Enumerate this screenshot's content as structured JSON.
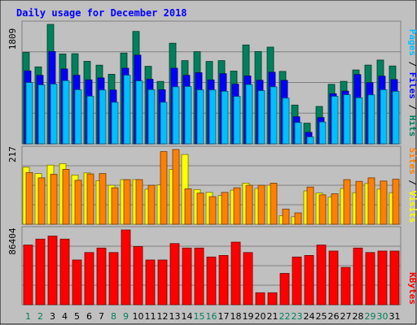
{
  "chart_data": [
    {
      "type": "bar",
      "title": "Daily usage for December 2018",
      "categories": [
        "1",
        "2",
        "3",
        "4",
        "5",
        "6",
        "7",
        "8",
        "9",
        "10",
        "11",
        "12",
        "13",
        "14",
        "15",
        "16",
        "17",
        "18",
        "19",
        "20",
        "21",
        "22",
        "23",
        "24",
        "25",
        "26",
        "27",
        "28",
        "29",
        "30",
        "31"
      ],
      "weekend_days": [
        "1",
        "2",
        "8",
        "9",
        "15",
        "16",
        "22",
        "23",
        "29",
        "30"
      ],
      "y_max_label": "1809",
      "y_legend": [
        "Pages",
        "Files",
        "Hits"
      ],
      "series": [
        {
          "name": "Hits",
          "color": "#00805c",
          "values": [
            1384,
            1165,
            1809,
            1361,
            1365,
            1249,
            1191,
            1054,
            1375,
            1702,
            1174,
            945,
            1523,
            1260,
            1396,
            1248,
            1260,
            1102,
            1498,
            1398,
            1465,
            1096,
            587,
            313,
            566,
            901,
            946,
            1119,
            1192,
            1269,
            1179
          ]
        },
        {
          "name": "Files",
          "color": "#0000ff",
          "values": [
            1104,
            1038,
            1398,
            1133,
            1039,
            969,
            998,
            815,
            1145,
            1343,
            977,
            819,
            1144,
            1038,
            1077,
            967,
            1062,
            903,
            1027,
            962,
            1084,
            961,
            410,
            173,
            397,
            758,
            799,
            1048,
            927,
            1024,
            973
          ]
        },
        {
          "name": "Pages",
          "color": "#00bfff",
          "values": [
            928,
            892,
            905,
            956,
            818,
            721,
            815,
            629,
            1039,
            952,
            820,
            629,
            863,
            867,
            816,
            816,
            795,
            718,
            897,
            805,
            863,
            691,
            323,
            104,
            330,
            719,
            743,
            697,
            741,
            818,
            794
          ]
        }
      ]
    },
    {
      "type": "bar",
      "y_max_label": "217",
      "y_legend": [
        "Sites",
        "Visits"
      ],
      "categories": [
        "1",
        "2",
        "3",
        "4",
        "5",
        "6",
        "7",
        "8",
        "9",
        "10",
        "11",
        "12",
        "13",
        "14",
        "15",
        "16",
        "17",
        "18",
        "19",
        "20",
        "21",
        "22",
        "23",
        "24",
        "25",
        "26",
        "27",
        "28",
        "29",
        "30",
        "31"
      ],
      "series": [
        {
          "name": "Visits",
          "color": "#ffff00",
          "values": [
            161,
            143,
            167,
            171,
            139,
            145,
            123,
            110,
            126,
            126,
            99,
            111,
            155,
            197,
            98,
            90,
            81,
            96,
            116,
            101,
            110,
            24,
            21,
            94,
            88,
            77,
            101,
            89,
            115,
            99,
            89
          ]
        },
        {
          "name": "Sites",
          "color": "#ff8000",
          "values": [
            146,
            131,
            141,
            155,
            124,
            142,
            143,
            103,
            126,
            126,
            110,
            205,
            211,
            100,
            88,
            78,
            90,
            103,
            110,
            110,
            116,
            43,
            32,
            105,
            83,
            86,
            126,
            121,
            131,
            122,
            127
          ]
        }
      ]
    },
    {
      "type": "bar",
      "y_max_label": "86404",
      "y_legend": [
        "KBytes"
      ],
      "categories": [
        "1",
        "2",
        "3",
        "4",
        "5",
        "6",
        "7",
        "8",
        "9",
        "10",
        "11",
        "12",
        "13",
        "14",
        "15",
        "16",
        "17",
        "18",
        "19",
        "20",
        "21",
        "22",
        "23",
        "24",
        "25",
        "26",
        "27",
        "28",
        "29",
        "30",
        "31"
      ],
      "series": [
        {
          "name": "KBytes",
          "color": "#ff0000",
          "values": [
            68911,
            75823,
            79274,
            75823,
            51696,
            60304,
            65487,
            60304,
            86404,
            67189,
            51696,
            51696,
            70635,
            65487,
            65487,
            55153,
            56876,
            72356,
            60304,
            13788,
            13788,
            36194,
            55153,
            56876,
            68911,
            62028,
            43082,
            65487,
            60304,
            62028,
            62028
          ]
        }
      ]
    }
  ]
}
